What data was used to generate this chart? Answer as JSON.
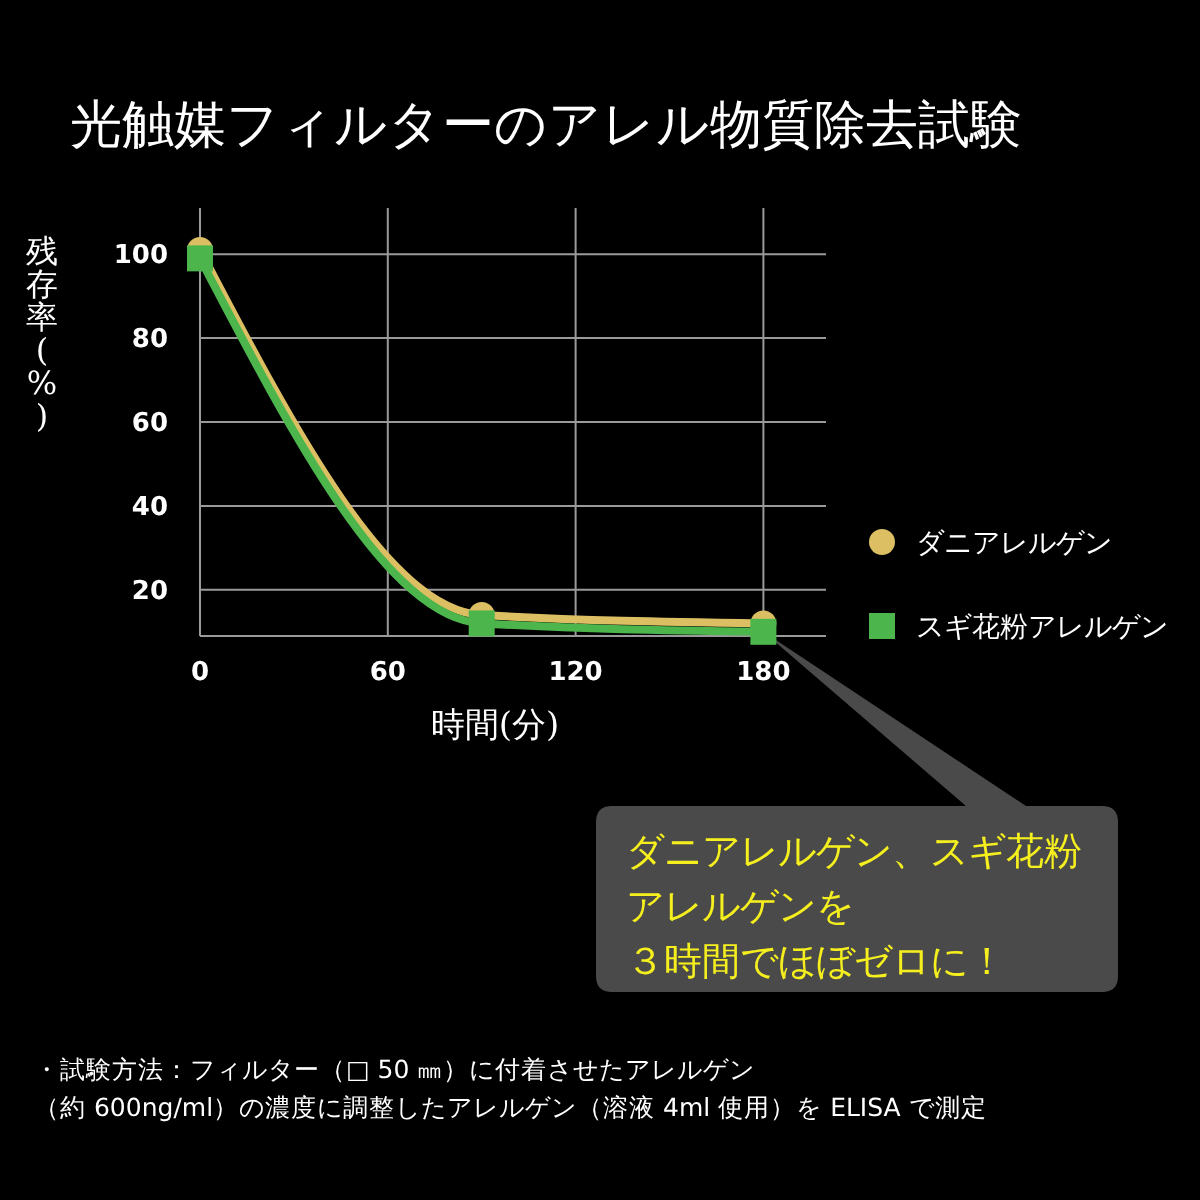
{
  "chart_data": {
    "type": "line",
    "title": "光触媒フィルターのアレル物質除去試験",
    "xlabel": "時間(分)",
    "ylabel": "残存率(%)",
    "x": [
      0,
      90,
      180
    ],
    "series": [
      {
        "name": "ダニアレルゲン",
        "color": "#dcbf62",
        "marker": "circle",
        "values": [
          101,
          14,
          12
        ]
      },
      {
        "name": "スギ花粉アレルゲン",
        "color": "#4cb54c",
        "marker": "square",
        "values": [
          99,
          12,
          10
        ]
      }
    ],
    "xlim": [
      0,
      200
    ],
    "ylim": [
      9,
      111
    ],
    "xticks": [
      0,
      60,
      120,
      180
    ],
    "yticks": [
      20,
      40,
      60,
      80,
      100
    ],
    "grid": true,
    "legend": "right",
    "line_style": "solid",
    "annotations": [
      "ダニアレルゲン、スギ花粉アレルゲンを３時間でほぼゼロに！",
      "・試験方法：フィルター（□ 50 ㎜）に付着させたアレルゲン",
      "（約 600ng/ml）の濃度に調整したアレルゲン（溶液 4ml 使用）を ELISA で測定"
    ]
  }
}
